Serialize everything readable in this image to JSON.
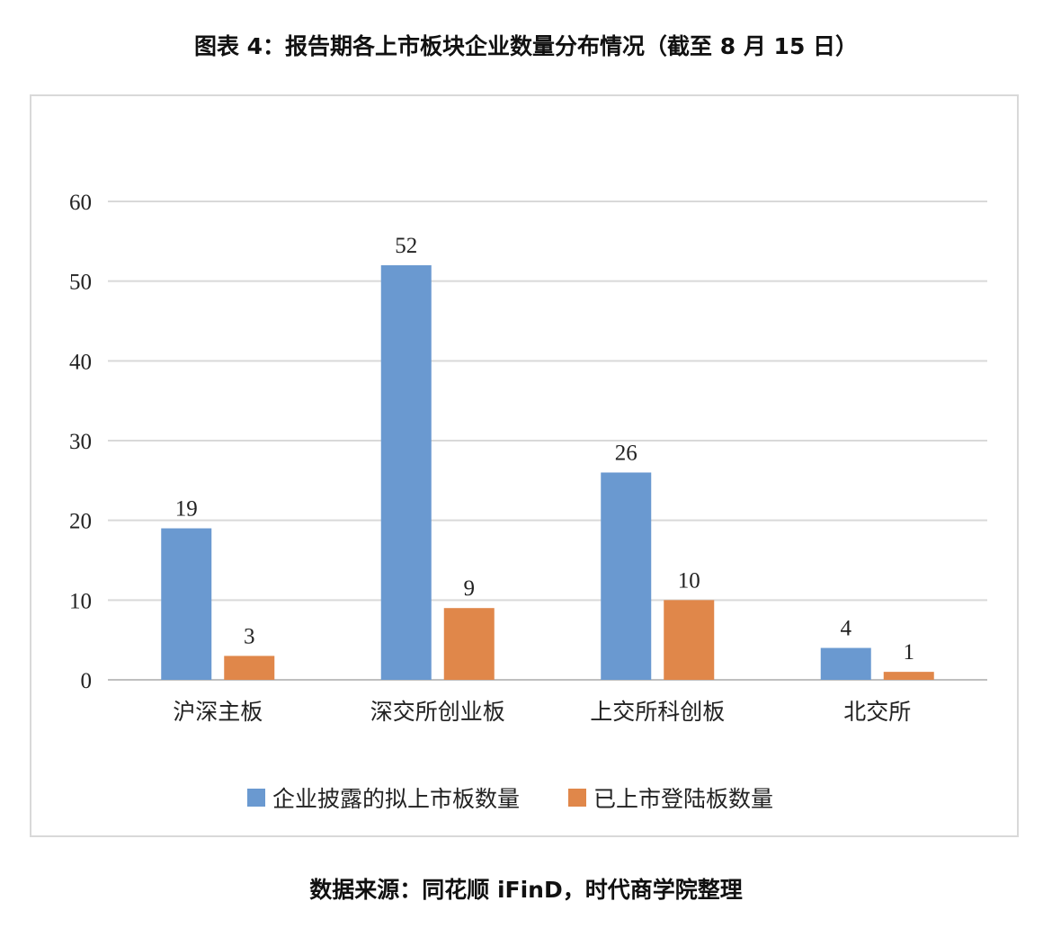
{
  "title": "图表 4：报告期各上市板块企业数量分布情况（截至 8 月 15 日）",
  "source": "数据来源：同花顺 iFinD，时代商学院整理",
  "colors": {
    "series1": "#6a99d0",
    "series2": "#e0874a",
    "grid": "#d9d9d9",
    "axis": "#bfbfbf"
  },
  "chart_data": {
    "type": "bar",
    "categories": [
      "沪深主板",
      "深交所创业板",
      "上交所科创板",
      "北交所"
    ],
    "series": [
      {
        "name": "企业披露的拟上市板数量",
        "values": [
          19,
          52,
          26,
          4
        ]
      },
      {
        "name": "已上市登陆板数量",
        "values": [
          3,
          9,
          10,
          1
        ]
      }
    ],
    "ylim": [
      0,
      60
    ],
    "yticks": [
      0,
      10,
      20,
      30,
      40,
      50,
      60
    ],
    "xlabel": "",
    "ylabel": "",
    "grid": true,
    "legend": "bottom",
    "data_labels": true
  }
}
